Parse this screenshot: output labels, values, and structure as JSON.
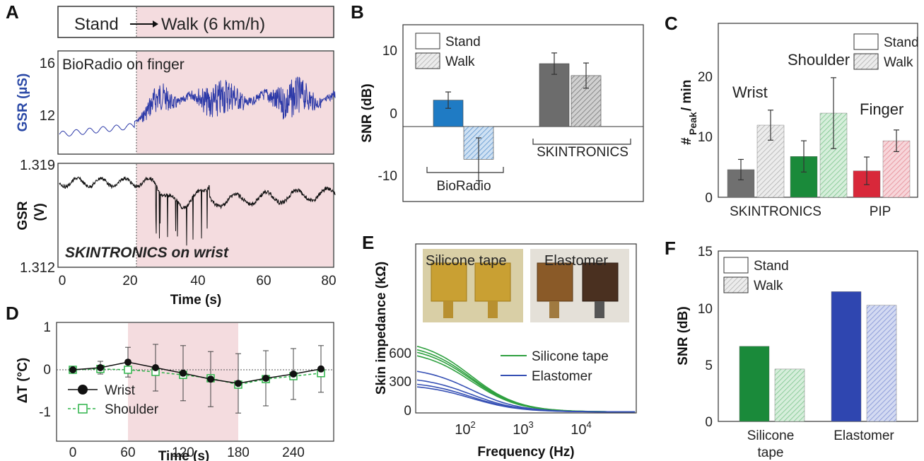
{
  "colors": {
    "green": "#1a8a3a",
    "red": "#d8283a",
    "blue": "#1f7bc4",
    "navy": "#2f46b0",
    "gray": "#666666",
    "pink": "#f4dcdf",
    "trace_blue": "#2d3aa8"
  },
  "panels": {
    "A": "A",
    "B": "B",
    "C": "C",
    "D": "D",
    "E": "E",
    "F": "F"
  },
  "panelA": {
    "stand": "Stand",
    "walk": "Walk (6 km/h)",
    "top_label": "BioRadio on finger",
    "top_ylabel": "GSR (µS)",
    "top_ticks": [
      "16",
      "12"
    ],
    "bottom_label": "SKINTRONICS on wrist",
    "bottom_ylabel_a": "GSR",
    "bottom_ylabel_b": "(V)",
    "bottom_ticks": [
      "1.319",
      "1.312"
    ],
    "x_ticks": [
      "0",
      "20",
      "40",
      "60",
      "80"
    ],
    "xlabel": "Time (s)"
  },
  "panelB": {
    "ylabel": "SNR (dB)",
    "ticks": [
      "10",
      "0",
      "-10"
    ],
    "legend": [
      "Stand",
      "Walk"
    ],
    "groups": [
      "BioRadio",
      "SKINTRONICS"
    ]
  },
  "panelC": {
    "ylabel_a": "#",
    "ylabel_sub": "Peak",
    "ylabel_b": " / min",
    "ticks": [
      "20",
      "10",
      "0"
    ],
    "legend": [
      "Stand",
      "Walk"
    ],
    "cats": [
      "Wrist",
      "Shoulder",
      "Finger"
    ],
    "groups": [
      "SKINTRONICS",
      "PIP"
    ]
  },
  "panelD": {
    "ylabel": "ΔT (°C)",
    "ticks": [
      "1",
      "0",
      "-1"
    ],
    "x_ticks": [
      "0",
      "60",
      "120",
      "180",
      "240"
    ],
    "xlabel": "Time (s)",
    "legend": [
      "Wrist",
      "Shoulder"
    ]
  },
  "panelE": {
    "ylabel": "Skin impedance (kΩ)",
    "ticks": [
      "600",
      "300",
      "0"
    ],
    "xlabel": "Frequency (Hz)",
    "inset_labels": [
      "Silicone tape",
      "Elastomer"
    ],
    "legend": [
      "Silicone tape",
      "Elastomer"
    ]
  },
  "panelF": {
    "ylabel": "SNR (dB)",
    "ticks": [
      "15",
      "10",
      "5",
      "0"
    ],
    "legend": [
      "Stand",
      "Walk"
    ],
    "cats_a": [
      "Silicone",
      "tape"
    ],
    "cat_b": "Elastomer"
  },
  "chart_data": [
    {
      "panel": "B",
      "type": "bar",
      "categories": [
        "BioRadio",
        "SKINTRONICS"
      ],
      "ylabel": "SNR (dB)",
      "ylim": [
        -13,
        14
      ],
      "series": [
        {
          "name": "Stand",
          "values": [
            4.2,
            10.0
          ],
          "errors": [
            1.3,
            1.7
          ]
        },
        {
          "name": "Walk",
          "values": [
            -5.2,
            8.1
          ],
          "errors": [
            3.4,
            2.0
          ]
        }
      ]
    },
    {
      "panel": "C",
      "type": "bar",
      "categories": [
        "Wrist",
        "Shoulder",
        "Finger"
      ],
      "ylabel": "#Peak / min",
      "ylim": [
        0,
        27
      ],
      "series": [
        {
          "name": "Stand",
          "values": [
            4.6,
            6.8,
            4.4
          ],
          "errors": [
            1.7,
            2.6,
            2.3
          ]
        },
        {
          "name": "Walk",
          "values": [
            12.0,
            14.0,
            9.4
          ],
          "errors": [
            2.5,
            5.9,
            1.8
          ]
        }
      ]
    },
    {
      "panel": "D",
      "type": "line",
      "xlabel": "Time (s)",
      "ylabel": "ΔT (°C)",
      "xlim": [
        -20,
        290
      ],
      "ylim": [
        -1.25,
        1.25
      ],
      "x": [
        0,
        30,
        60,
        90,
        120,
        150,
        180,
        210,
        240,
        270
      ],
      "series": [
        {
          "name": "Wrist",
          "values": [
            0.0,
            0.05,
            0.18,
            0.05,
            -0.08,
            -0.22,
            -0.32,
            -0.2,
            -0.1,
            0.02
          ]
        },
        {
          "name": "Shoulder",
          "values": [
            0.0,
            0.02,
            0.0,
            -0.05,
            -0.12,
            -0.2,
            -0.35,
            -0.22,
            -0.15,
            -0.08
          ]
        }
      ]
    },
    {
      "panel": "F",
      "type": "bar",
      "categories": [
        "Silicone tape",
        "Elastomer"
      ],
      "ylabel": "SNR (dB)",
      "ylim": [
        0,
        15
      ],
      "series": [
        {
          "name": "Stand",
          "values": [
            6.6,
            11.4
          ]
        },
        {
          "name": "Walk",
          "values": [
            4.6,
            10.2
          ]
        }
      ]
    }
  ]
}
